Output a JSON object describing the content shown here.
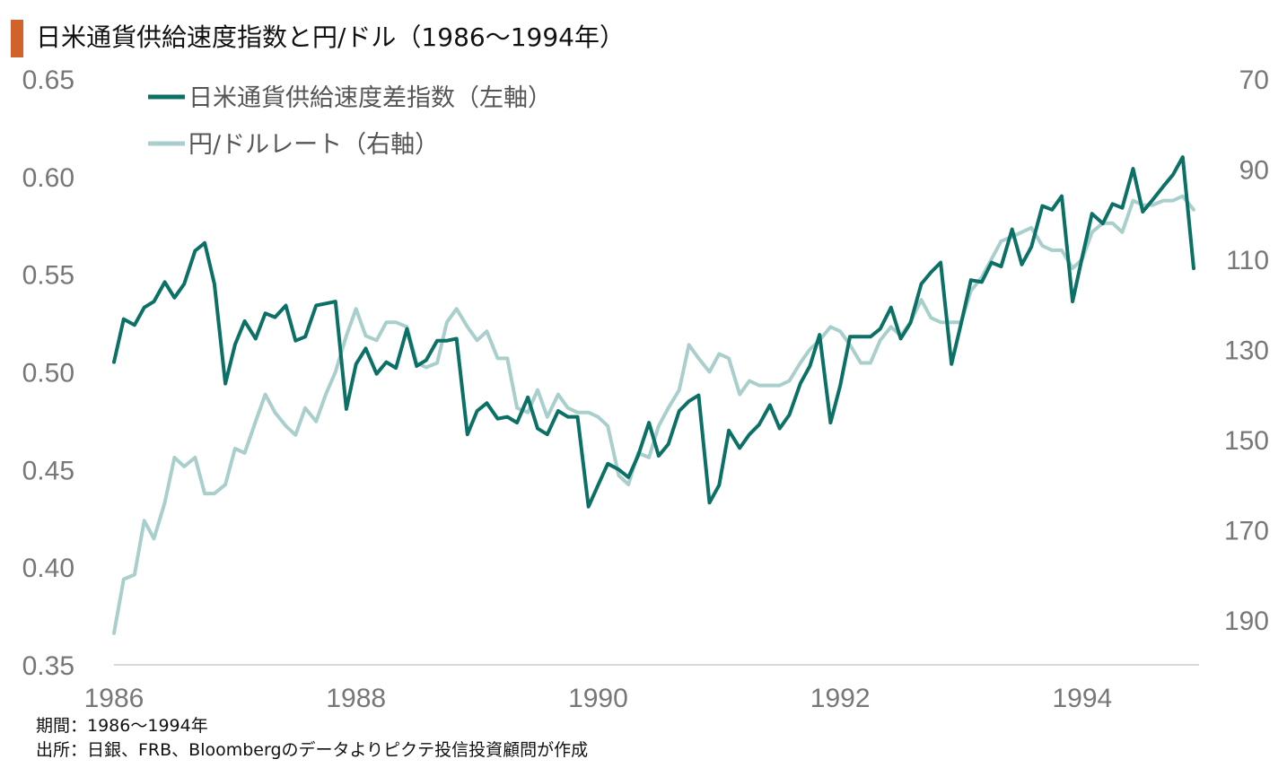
{
  "title": "日米通貨供給速度指数と円/ドル（1986～1994年）",
  "footer": {
    "period": "期間：1986～1994年",
    "source": "出所：日銀、FRB、Bloombergのデータよりピクテ投信投資顧問が作成"
  },
  "chart_data": {
    "type": "line",
    "title": "日米通貨供給速度指数と円/ドル（1986～1994年）",
    "x_ticks": [
      "1986",
      "1988",
      "1990",
      "1992",
      "1994"
    ],
    "xlim": [
      1986.0,
      1994.95
    ],
    "y_left": {
      "lim": [
        0.35,
        0.65
      ],
      "ticks": [
        "0.65",
        "0.60",
        "0.55",
        "0.50",
        "0.45",
        "0.40",
        "0.35"
      ]
    },
    "y_right": {
      "lim": [
        70,
        200
      ],
      "inverted": true,
      "ticks": [
        "70",
        "90",
        "110",
        "130",
        "150",
        "170",
        "190"
      ]
    },
    "legend_placement": "top-left",
    "grid": false,
    "series": [
      {
        "name": "日米通貨供給速度差指数（左軸）",
        "axis": "left",
        "color": "#0b7065",
        "points": [
          [
            1986.0,
            0.505
          ],
          [
            1986.08,
            0.527
          ],
          [
            1986.17,
            0.524
          ],
          [
            1986.25,
            0.533
          ],
          [
            1986.33,
            0.536
          ],
          [
            1986.42,
            0.546
          ],
          [
            1986.5,
            0.538
          ],
          [
            1986.58,
            0.545
          ],
          [
            1986.67,
            0.562
          ],
          [
            1986.75,
            0.566
          ],
          [
            1986.83,
            0.545
          ],
          [
            1986.92,
            0.494
          ],
          [
            1987.0,
            0.514
          ],
          [
            1987.08,
            0.526
          ],
          [
            1987.17,
            0.517
          ],
          [
            1987.25,
            0.53
          ],
          [
            1987.33,
            0.528
          ],
          [
            1987.42,
            0.534
          ],
          [
            1987.5,
            0.516
          ],
          [
            1987.58,
            0.518
          ],
          [
            1987.67,
            0.534
          ],
          [
            1987.75,
            0.535
          ],
          [
            1987.83,
            0.536
          ],
          [
            1987.92,
            0.481
          ],
          [
            1988.0,
            0.504
          ],
          [
            1988.08,
            0.512
          ],
          [
            1988.17,
            0.499
          ],
          [
            1988.25,
            0.505
          ],
          [
            1988.33,
            0.502
          ],
          [
            1988.42,
            0.522
          ],
          [
            1988.5,
            0.503
          ],
          [
            1988.58,
            0.506
          ],
          [
            1988.67,
            0.516
          ],
          [
            1988.75,
            0.516
          ],
          [
            1988.83,
            0.517
          ],
          [
            1988.92,
            0.468
          ],
          [
            1989.0,
            0.48
          ],
          [
            1989.08,
            0.484
          ],
          [
            1989.17,
            0.476
          ],
          [
            1989.25,
            0.477
          ],
          [
            1989.33,
            0.474
          ],
          [
            1989.42,
            0.487
          ],
          [
            1989.5,
            0.471
          ],
          [
            1989.58,
            0.468
          ],
          [
            1989.67,
            0.48
          ],
          [
            1989.75,
            0.477
          ],
          [
            1989.83,
            0.477
          ],
          [
            1989.92,
            0.431
          ],
          [
            1990.0,
            0.442
          ],
          [
            1990.08,
            0.453
          ],
          [
            1990.17,
            0.45
          ],
          [
            1990.25,
            0.446
          ],
          [
            1990.33,
            0.457
          ],
          [
            1990.42,
            0.474
          ],
          [
            1990.5,
            0.457
          ],
          [
            1990.58,
            0.463
          ],
          [
            1990.67,
            0.48
          ],
          [
            1990.75,
            0.485
          ],
          [
            1990.83,
            0.488
          ],
          [
            1990.92,
            0.433
          ],
          [
            1991.0,
            0.442
          ],
          [
            1991.08,
            0.47
          ],
          [
            1991.17,
            0.461
          ],
          [
            1991.25,
            0.468
          ],
          [
            1991.33,
            0.473
          ],
          [
            1991.42,
            0.483
          ],
          [
            1991.5,
            0.471
          ],
          [
            1991.58,
            0.478
          ],
          [
            1991.67,
            0.494
          ],
          [
            1991.75,
            0.503
          ],
          [
            1991.83,
            0.519
          ],
          [
            1991.92,
            0.474
          ],
          [
            1992.0,
            0.493
          ],
          [
            1992.08,
            0.518
          ],
          [
            1992.17,
            0.518
          ],
          [
            1992.25,
            0.518
          ],
          [
            1992.33,
            0.522
          ],
          [
            1992.42,
            0.533
          ],
          [
            1992.5,
            0.517
          ],
          [
            1992.58,
            0.525
          ],
          [
            1992.67,
            0.545
          ],
          [
            1992.75,
            0.551
          ],
          [
            1992.83,
            0.556
          ],
          [
            1992.92,
            0.504
          ],
          [
            1993.0,
            0.525
          ],
          [
            1993.08,
            0.547
          ],
          [
            1993.17,
            0.546
          ],
          [
            1993.25,
            0.556
          ],
          [
            1993.33,
            0.554
          ],
          [
            1993.42,
            0.573
          ],
          [
            1993.5,
            0.555
          ],
          [
            1993.58,
            0.564
          ],
          [
            1993.67,
            0.585
          ],
          [
            1993.75,
            0.583
          ],
          [
            1993.83,
            0.59
          ],
          [
            1993.92,
            0.536
          ],
          [
            1994.0,
            0.559
          ],
          [
            1994.08,
            0.581
          ],
          [
            1994.17,
            0.576
          ],
          [
            1994.25,
            0.586
          ],
          [
            1994.33,
            0.584
          ],
          [
            1994.42,
            0.604
          ],
          [
            1994.5,
            0.582
          ],
          [
            1994.58,
            0.588
          ],
          [
            1994.67,
            0.595
          ],
          [
            1994.75,
            0.601
          ],
          [
            1994.83,
            0.61
          ],
          [
            1994.92,
            0.553
          ]
        ]
      },
      {
        "name": "円/ドルレート（右軸）",
        "axis": "right",
        "color": "#a9cfcc",
        "points": [
          [
            1986.0,
            193
          ],
          [
            1986.08,
            181
          ],
          [
            1986.17,
            180
          ],
          [
            1986.25,
            168
          ],
          [
            1986.33,
            172
          ],
          [
            1986.42,
            164
          ],
          [
            1986.5,
            154
          ],
          [
            1986.58,
            156
          ],
          [
            1986.67,
            154
          ],
          [
            1986.75,
            162
          ],
          [
            1986.83,
            162
          ],
          [
            1986.92,
            160
          ],
          [
            1987.0,
            152
          ],
          [
            1987.08,
            153
          ],
          [
            1987.17,
            146
          ],
          [
            1987.25,
            140
          ],
          [
            1987.33,
            144
          ],
          [
            1987.42,
            147
          ],
          [
            1987.5,
            149
          ],
          [
            1987.58,
            143
          ],
          [
            1987.67,
            146
          ],
          [
            1987.75,
            140
          ],
          [
            1987.83,
            135
          ],
          [
            1987.92,
            127
          ],
          [
            1988.0,
            121
          ],
          [
            1988.08,
            127
          ],
          [
            1988.17,
            128
          ],
          [
            1988.25,
            124
          ],
          [
            1988.33,
            124
          ],
          [
            1988.42,
            125
          ],
          [
            1988.5,
            133
          ],
          [
            1988.58,
            134
          ],
          [
            1988.67,
            133
          ],
          [
            1988.75,
            124
          ],
          [
            1988.83,
            121
          ],
          [
            1988.92,
            125
          ],
          [
            1989.0,
            128
          ],
          [
            1989.08,
            126
          ],
          [
            1989.17,
            132
          ],
          [
            1989.25,
            132
          ],
          [
            1989.33,
            143
          ],
          [
            1989.42,
            144
          ],
          [
            1989.5,
            139
          ],
          [
            1989.58,
            145
          ],
          [
            1989.67,
            140
          ],
          [
            1989.75,
            143
          ],
          [
            1989.83,
            144
          ],
          [
            1989.92,
            144
          ],
          [
            1990.0,
            145
          ],
          [
            1990.08,
            147
          ],
          [
            1990.17,
            158
          ],
          [
            1990.25,
            160
          ],
          [
            1990.33,
            153
          ],
          [
            1990.42,
            154
          ],
          [
            1990.5,
            147
          ],
          [
            1990.58,
            143
          ],
          [
            1990.67,
            139
          ],
          [
            1990.75,
            129
          ],
          [
            1990.83,
            132
          ],
          [
            1990.92,
            135
          ],
          [
            1991.0,
            131
          ],
          [
            1991.08,
            132
          ],
          [
            1991.17,
            140
          ],
          [
            1991.25,
            137
          ],
          [
            1991.33,
            138
          ],
          [
            1991.42,
            138
          ],
          [
            1991.5,
            138
          ],
          [
            1991.58,
            137
          ],
          [
            1991.67,
            133
          ],
          [
            1991.75,
            130
          ],
          [
            1991.83,
            128
          ],
          [
            1991.92,
            125
          ],
          [
            1992.0,
            126
          ],
          [
            1992.08,
            129
          ],
          [
            1992.17,
            133
          ],
          [
            1992.25,
            133
          ],
          [
            1992.33,
            128
          ],
          [
            1992.42,
            125
          ],
          [
            1992.5,
            127
          ],
          [
            1992.58,
            124
          ],
          [
            1992.67,
            119
          ],
          [
            1992.75,
            123
          ],
          [
            1992.83,
            124
          ],
          [
            1992.92,
            124
          ],
          [
            1993.0,
            124
          ],
          [
            1993.08,
            117
          ],
          [
            1993.17,
            114
          ],
          [
            1993.25,
            110
          ],
          [
            1993.33,
            106
          ],
          [
            1993.42,
            105
          ],
          [
            1993.5,
            104
          ],
          [
            1993.58,
            103
          ],
          [
            1993.67,
            107
          ],
          [
            1993.75,
            108
          ],
          [
            1993.83,
            108
          ],
          [
            1993.92,
            112
          ],
          [
            1994.0,
            110
          ],
          [
            1994.08,
            104
          ],
          [
            1994.17,
            102
          ],
          [
            1994.25,
            102
          ],
          [
            1994.33,
            104
          ],
          [
            1994.42,
            97
          ],
          [
            1994.5,
            98
          ],
          [
            1994.58,
            98
          ],
          [
            1994.67,
            97
          ],
          [
            1994.75,
            97
          ],
          [
            1994.83,
            96
          ],
          [
            1994.92,
            99
          ]
        ]
      }
    ]
  }
}
